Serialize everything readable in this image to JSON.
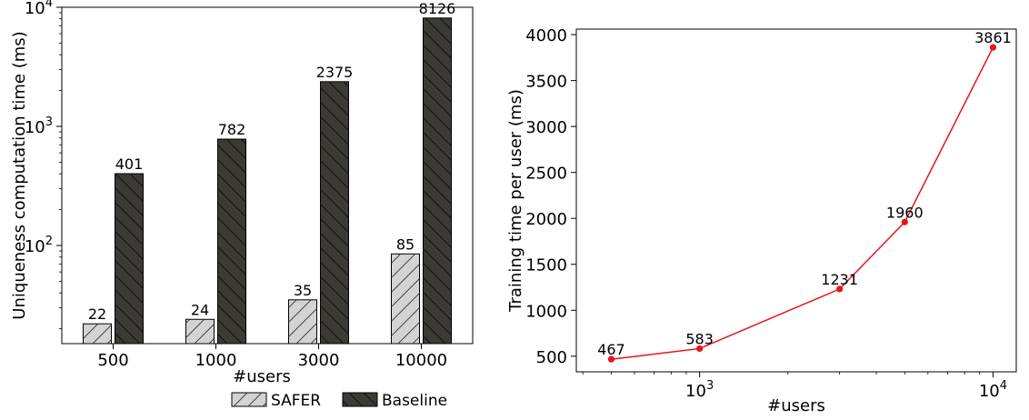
{
  "colors": {
    "safer_fill": "#d3d3d3",
    "baseline_fill": "#3c3a34",
    "line_color": "#e8141c",
    "axis_color": "#000000"
  },
  "chart_data": [
    {
      "type": "bar",
      "xlabel": "#users",
      "ylabel": "Uniqueness computation time (ms)",
      "yscale": "log",
      "ylim": [
        15,
        10000
      ],
      "yticks": [
        {
          "value": 100,
          "base": "10",
          "exp": "2"
        },
        {
          "value": 1000,
          "base": "10",
          "exp": "3"
        },
        {
          "value": 10000,
          "base": "10",
          "exp": "4"
        }
      ],
      "categories": [
        "500",
        "1000",
        "3000",
        "10000"
      ],
      "series": [
        {
          "name": "SAFER",
          "values": [
            22,
            24,
            35,
            85
          ],
          "labels": [
            "22",
            "24",
            "35",
            "85"
          ],
          "hatch": "forward"
        },
        {
          "name": "Baseline",
          "values": [
            401,
            782,
            2375,
            8126
          ],
          "labels": [
            "401",
            "782",
            "2375",
            "8126"
          ],
          "hatch": "backward"
        }
      ],
      "legend": "bottom-center",
      "grid": false
    },
    {
      "type": "line",
      "xlabel": "#users",
      "ylabel": "Training time per user (ms)",
      "xscale": "log",
      "xlim": [
        380,
        12000
      ],
      "xticks": [
        {
          "value": 1000,
          "base": "10",
          "exp": "3"
        },
        {
          "value": 10000,
          "base": "10",
          "exp": "4"
        }
      ],
      "ylim": [
        330,
        4060
      ],
      "yticks": [
        500,
        1000,
        1500,
        2000,
        2500,
        3000,
        3500,
        4000
      ],
      "x": [
        500,
        1000,
        3000,
        5000,
        10000
      ],
      "y": [
        467,
        583,
        1231,
        1960,
        3861
      ],
      "labels": [
        "467",
        "583",
        "1231",
        "1960",
        "3861"
      ],
      "grid": false
    }
  ]
}
